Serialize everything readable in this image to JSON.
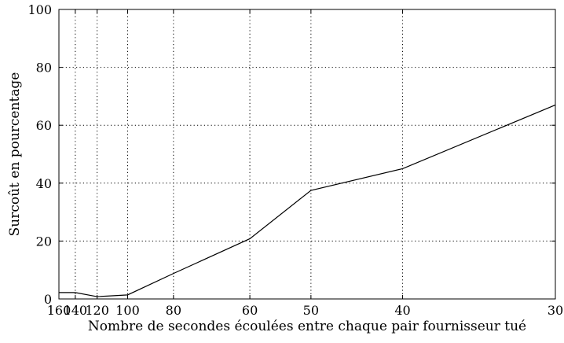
{
  "chart_data": {
    "type": "line",
    "title": "",
    "xlabel": "Nombre de secondes écoulées entre chaque pair fournisseur tué",
    "ylabel": "Surcoût en pourcentage",
    "x_ticks": [
      160,
      140,
      120,
      100,
      80,
      60,
      50,
      40,
      30
    ],
    "x_tick_labels": [
      "160",
      "140",
      "120",
      "100",
      "80",
      "60",
      "50",
      "40",
      "30"
    ],
    "y_ticks": [
      0,
      20,
      40,
      60,
      80,
      100
    ],
    "y_tick_labels": [
      "0",
      "20",
      "40",
      "60",
      "80",
      "100"
    ],
    "ylim": [
      0,
      100
    ],
    "grid": true,
    "legend": "none",
    "line_color": "#000000",
    "series": [
      {
        "x": [
          160,
          140,
          120,
          100,
          80,
          60,
          50,
          40,
          30
        ],
        "values": [
          2.2,
          2.2,
          0.8,
          1.4,
          8.8,
          20.8,
          37.5,
          45.0,
          67.0
        ]
      }
    ]
  }
}
